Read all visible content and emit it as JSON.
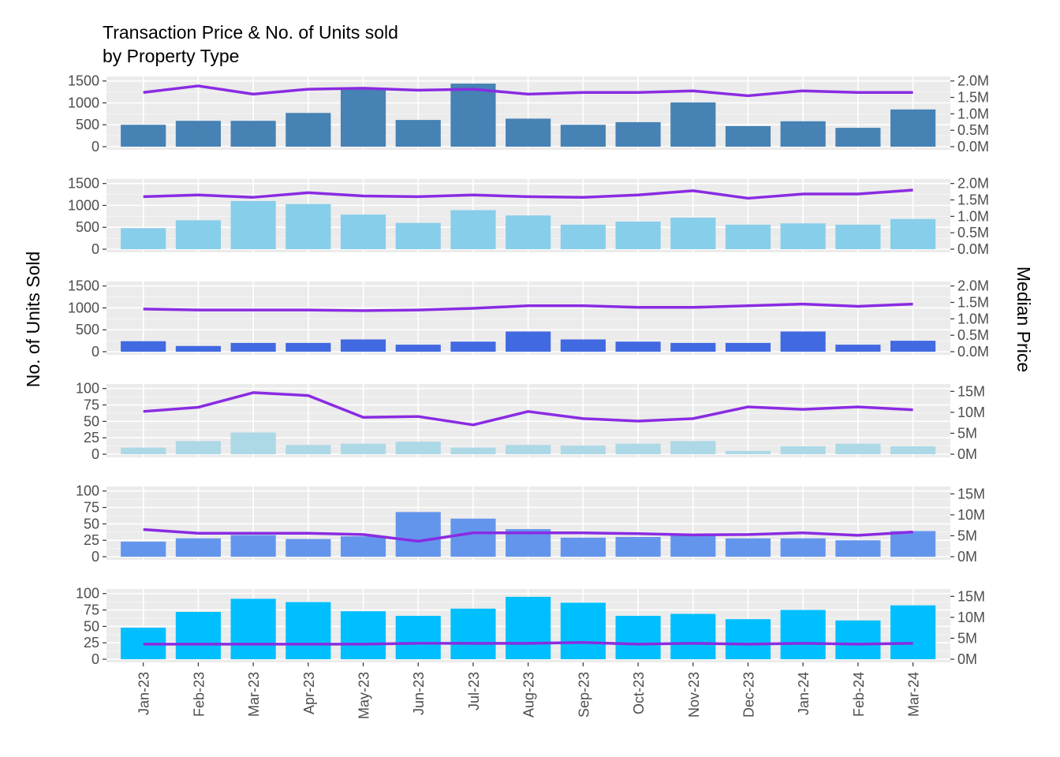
{
  "chart_data": {
    "type": "bar",
    "title_lines": [
      "Transaction Price & No. of Units sold",
      "by Property Type"
    ],
    "ylabel": "No. of Units Sold",
    "y2label": "Median Price",
    "categories": [
      "Jan-23",
      "Feb-23",
      "Mar-23",
      "Apr-23",
      "May-23",
      "Jun-23",
      "Jul-23",
      "Aug-23",
      "Sep-23",
      "Oct-23",
      "Nov-23",
      "Dec-23",
      "Jan-24",
      "Feb-24",
      "Mar-24"
    ],
    "line_color": "#8a2be2",
    "panels": [
      {
        "bar_color": "#4682b4",
        "ylim": [
          0,
          1500
        ],
        "yticks": [
          0,
          500,
          1000,
          1500
        ],
        "y2lim": [
          0,
          2.0
        ],
        "y2ticks": [
          0,
          0.5,
          1.0,
          1.5,
          2.0
        ],
        "y2ticklabels": [
          "0.0M",
          "0.5M",
          "1.0M",
          "1.5M",
          "2.0M"
        ],
        "units": [
          500,
          590,
          590,
          770,
          1340,
          610,
          1440,
          640,
          500,
          560,
          1010,
          470,
          580,
          430,
          850
        ],
        "median_price": [
          1.65,
          1.85,
          1.6,
          1.75,
          1.78,
          1.72,
          1.75,
          1.6,
          1.65,
          1.65,
          1.7,
          1.55,
          1.7,
          1.65,
          1.65
        ]
      },
      {
        "bar_color": "#87ceeb",
        "ylim": [
          0,
          1500
        ],
        "yticks": [
          0,
          500,
          1000,
          1500
        ],
        "y2lim": [
          0,
          2.0
        ],
        "y2ticks": [
          0,
          0.5,
          1.0,
          1.5,
          2.0
        ],
        "y2ticklabels": [
          "0.0M",
          "0.5M",
          "1.0M",
          "1.5M",
          "2.0M"
        ],
        "units": [
          480,
          660,
          1100,
          1030,
          790,
          600,
          890,
          770,
          560,
          630,
          720,
          560,
          590,
          560,
          690
        ],
        "median_price": [
          1.6,
          1.65,
          1.58,
          1.72,
          1.62,
          1.6,
          1.65,
          1.6,
          1.58,
          1.65,
          1.78,
          1.55,
          1.68,
          1.68,
          1.8
        ]
      },
      {
        "bar_color": "#4169e1",
        "ylim": [
          0,
          1500
        ],
        "yticks": [
          0,
          500,
          1000,
          1500
        ],
        "y2lim": [
          0,
          2.0
        ],
        "y2ticks": [
          0,
          0.5,
          1.0,
          1.5,
          2.0
        ],
        "y2ticklabels": [
          "0.0M",
          "0.5M",
          "1.0M",
          "1.5M",
          "2.0M"
        ],
        "units": [
          240,
          130,
          200,
          200,
          280,
          160,
          230,
          460,
          280,
          230,
          200,
          200,
          460,
          160,
          250
        ],
        "median_price": [
          1.3,
          1.27,
          1.27,
          1.27,
          1.25,
          1.27,
          1.32,
          1.4,
          1.4,
          1.35,
          1.35,
          1.4,
          1.45,
          1.38,
          1.45
        ]
      },
      {
        "bar_color": "#add8e6",
        "ylim": [
          0,
          100
        ],
        "yticks": [
          0,
          25,
          50,
          75,
          100
        ],
        "y2ticks": [
          0,
          5,
          10,
          15
        ],
        "y2lim": [
          0,
          16
        ],
        "y2ticklabels": [
          "0M",
          "5M",
          "10M",
          "15M"
        ],
        "units": [
          10,
          20,
          33,
          14,
          16,
          19,
          10,
          14,
          13,
          16,
          20,
          5,
          12,
          16,
          12
        ],
        "median_price": [
          10.2,
          11.2,
          14.7,
          14.0,
          8.8,
          9.0,
          7.0,
          10.2,
          8.5,
          7.9,
          8.5,
          11.3,
          10.7,
          11.3,
          10.6
        ]
      },
      {
        "bar_color": "#6495ed",
        "ylim": [
          0,
          100
        ],
        "yticks": [
          0,
          25,
          50,
          75,
          100
        ],
        "y2ticks": [
          0,
          5,
          10,
          15
        ],
        "y2lim": [
          0,
          16
        ],
        "y2ticklabels": [
          "0M",
          "5M",
          "10M",
          "15M"
        ],
        "units": [
          23,
          28,
          33,
          27,
          31,
          68,
          58,
          42,
          29,
          30,
          33,
          28,
          28,
          25,
          39
        ],
        "median_price": [
          6.5,
          5.6,
          5.6,
          5.6,
          5.3,
          3.7,
          5.7,
          5.7,
          5.7,
          5.5,
          5.2,
          5.3,
          5.7,
          5.1,
          5.9
        ]
      },
      {
        "bar_color": "#00bfff",
        "ylim": [
          0,
          100
        ],
        "yticks": [
          0,
          25,
          50,
          75,
          100
        ],
        "y2ticks": [
          0,
          5,
          10,
          15
        ],
        "y2lim": [
          0,
          16
        ],
        "y2ticklabels": [
          "0M",
          "5M",
          "10M",
          "15M"
        ],
        "units": [
          48,
          72,
          92,
          87,
          73,
          66,
          77,
          95,
          86,
          66,
          69,
          61,
          75,
          59,
          82
        ],
        "median_price": [
          3.6,
          3.6,
          3.6,
          3.6,
          3.6,
          3.8,
          3.8,
          3.8,
          4.0,
          3.6,
          3.8,
          3.6,
          3.8,
          3.6,
          3.8
        ]
      }
    ]
  }
}
